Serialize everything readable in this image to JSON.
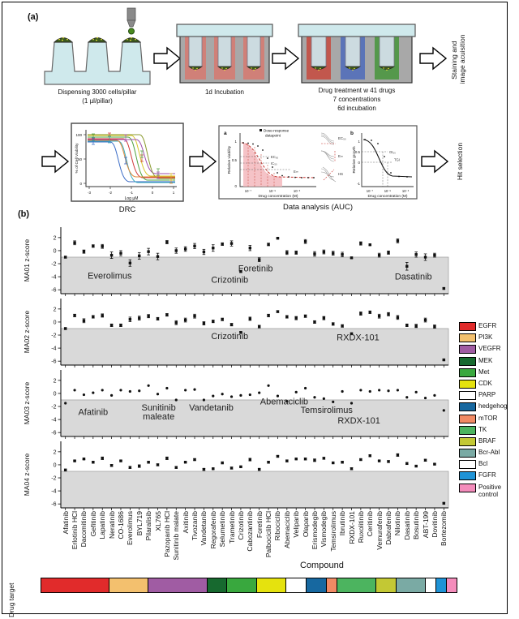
{
  "figure": {
    "panel_a_label": "(a)",
    "panel_b_label": "(b)"
  },
  "workflow": {
    "step1": {
      "caption_line1": "Dispensing 3000 cells/pillar",
      "caption_line2": "(1 µl/pillar)"
    },
    "step2": {
      "caption": "1d Incubation"
    },
    "step3": {
      "caption_line1": "Drug treatment w 41 drugs",
      "caption_line2": "7 concentrations",
      "caption_line3": "6d incubation"
    },
    "stage_label_top_line1": "Staining and",
    "stage_label_top_line2": "image acuisition",
    "stage_label_bottom": "Hit selection",
    "drc": {
      "caption": "DRC",
      "ylabel": "% of Cell Viability",
      "xlabel": "Log µM",
      "yticks": [
        "100",
        "50",
        "0"
      ],
      "xticks": [
        "-3",
        "-2",
        "-1",
        "0",
        "1"
      ]
    },
    "analysis": {
      "caption": "Data analysis (AUC)",
      "a_label": "a",
      "b_label": "b",
      "a_legend_line1": "Dose-response",
      "a_legend_line2": "datapoint",
      "a_ylabel": "Relative viability",
      "a_yticks": [
        "1",
        "0.5",
        "0"
      ],
      "a_guides": [
        "EC₅₀",
        "IC₅₀",
        "E∞"
      ],
      "mid_labels": [
        "EC₅₀",
        "E∞",
        "HS"
      ],
      "b_ylabel": "Relative growth",
      "b_yticks": [
        "1",
        "0.5",
        "0",
        "-1"
      ],
      "b_guides": [
        "GI₅₀",
        "TGI"
      ],
      "log_ticks": [
        "10⁻⁷",
        "10⁻⁵",
        "10⁻³"
      ],
      "conc_xlabel": "Drug concentration (M)"
    }
  },
  "chart_data": {
    "type": "scatter",
    "xlabel": "Compound",
    "ylim": [
      -6.6,
      3.6
    ],
    "yticks": [
      2,
      0,
      -2,
      -4,
      -6
    ],
    "hit_threshold_top": -1,
    "grid": false,
    "legend_position": "right",
    "categories": [
      "Afatinib",
      "Erlotinib HCl",
      "Dacomitinib",
      "Gefitinib",
      "Lapatinib",
      "Neratinib",
      "CO-1686",
      "Everolimus",
      "BYL719",
      "Pilaralisib",
      "XL765",
      "Pazopanib HCl",
      "Sunitinib malate",
      "Axitinib",
      "Tivozanib",
      "Vandetanib",
      "Regorafenib",
      "Selumetinib",
      "Trametinib",
      "Crizotinib",
      "Cabozantinib",
      "Foretinib",
      "Palbociclib HCl",
      "Ribociclib",
      "Abemaciclib",
      "Veliparib",
      "Olaparib",
      "Erismodegib",
      "Vismodegib",
      "Temsirolimus",
      "Ibrutinib",
      "RXDX-101",
      "Ruxolitinib",
      "Ceritinib",
      "Vemurafenib",
      "Dabrafenib",
      "Nilotinib",
      "Dasatinib",
      "Bosutinib",
      "ABT-199",
      "Dovitinib",
      "Bortezomib"
    ],
    "panels": [
      {
        "name": "MA01",
        "ylabel": "MA01 z-score",
        "marker": "square",
        "has_error_bars": true,
        "values": [
          -1.0,
          1.2,
          -0.15,
          0.7,
          0.65,
          -0.7,
          -0.4,
          -1.9,
          -0.8,
          -0.15,
          -0.9,
          1.3,
          0.0,
          0.25,
          0.7,
          -0.2,
          0.4,
          1.0,
          1.1,
          -3.2,
          0.4,
          -1.4,
          0.95,
          1.9,
          -0.3,
          -0.3,
          1.4,
          -0.5,
          -0.2,
          -0.4,
          -0.6,
          -1.1,
          1.1,
          0.9,
          -0.7,
          -0.3,
          1.5,
          -2.4,
          -0.6,
          -1.0,
          -0.7,
          -5.8
        ],
        "errors": [
          0.15,
          0.3,
          0.25,
          0.2,
          0.3,
          0.5,
          0.4,
          0.5,
          0.5,
          0.5,
          0.5,
          0.25,
          0.4,
          0.35,
          0.4,
          0.4,
          0.5,
          0.2,
          0.4,
          0.15,
          0.4,
          0.3,
          0.2,
          0.1,
          0.3,
          0.25,
          0.3,
          0.35,
          0.3,
          0.3,
          0.35,
          0.1,
          0.25,
          0.1,
          0.3,
          0.25,
          0.3,
          0.6,
          0.4,
          0.5,
          0.3,
          0.1
        ],
        "annotations": [
          {
            "label": "Everolimus",
            "ci": 4.8,
            "z": -4.3
          },
          {
            "label": "Crizotinib",
            "ci": 17.8,
            "z": -4.9
          },
          {
            "label": "Foretinib",
            "ci": 20.6,
            "z": -3.2
          },
          {
            "label": "Dasatinib",
            "ci": 37.7,
            "z": -4.4
          }
        ]
      },
      {
        "name": "MA02",
        "ylabel": "MA02 z-score",
        "marker": "square",
        "has_error_bars": true,
        "values": [
          -1.0,
          1.0,
          0.2,
          0.8,
          1.0,
          -0.5,
          -0.5,
          0.4,
          0.6,
          0.9,
          0.5,
          1.1,
          -0.1,
          0.3,
          0.9,
          -0.2,
          0.1,
          0.4,
          -0.4,
          -1.6,
          0.5,
          -0.7,
          1.0,
          1.6,
          0.8,
          0.6,
          0.9,
          0.0,
          0.6,
          -0.3,
          -0.6,
          -1.8,
          1.3,
          1.5,
          0.9,
          1.2,
          0.7,
          -0.5,
          -0.6,
          0.3,
          -0.7,
          -5.8
        ],
        "errors": [
          0.15,
          0.2,
          0.3,
          0.2,
          0.25,
          0.2,
          0.2,
          0.35,
          0.3,
          0.25,
          0.2,
          0.2,
          0.3,
          0.3,
          0.3,
          0.25,
          0.2,
          0.2,
          0.2,
          0.15,
          0.25,
          0.2,
          0.2,
          0.15,
          0.2,
          0.25,
          0.2,
          0.2,
          0.25,
          0.2,
          0.2,
          0.15,
          0.25,
          0.2,
          0.3,
          0.25,
          0.3,
          0.2,
          0.25,
          0.3,
          0.25,
          0.1
        ],
        "annotations": [
          {
            "label": "Crizotinib",
            "ci": 17.8,
            "z": -2.6
          },
          {
            "label": "RXDX-101",
            "ci": 31.7,
            "z": -2.8
          }
        ]
      },
      {
        "name": "MA03",
        "ylabel": "MA03 z-score",
        "marker": "dot",
        "has_error_bars": false,
        "values": [
          -1.5,
          0.5,
          -0.2,
          0.1,
          0.5,
          -0.3,
          0.5,
          0.3,
          0.4,
          1.2,
          -0.1,
          0.8,
          -1.0,
          0.5,
          0.6,
          -1.0,
          -0.4,
          -0.1,
          -0.5,
          -0.3,
          -0.2,
          0.1,
          1.2,
          -0.4,
          -1.2,
          0.2,
          0.8,
          -0.6,
          -0.8,
          -1.3,
          0.3,
          -1.5,
          0.5,
          0.3,
          0.5,
          0.4,
          0.5,
          -0.6,
          0.2,
          -0.7,
          -0.3,
          -2.6
        ],
        "annotations": [
          {
            "label": "Afatinib",
            "ci": 3.0,
            "z": -3.3
          },
          {
            "label": "Sunitinib\nmaleate",
            "ci": 10.1,
            "z": -2.6
          },
          {
            "label": "Vandetanib",
            "ci": 15.8,
            "z": -2.6
          },
          {
            "label": "Abemaciclib",
            "ci": 23.7,
            "z": -1.7
          },
          {
            "label": "Temsirolimus",
            "ci": 28.3,
            "z": -3.0
          },
          {
            "label": "RXDX-101",
            "ci": 31.8,
            "z": -4.6
          }
        ]
      },
      {
        "name": "MA04",
        "ylabel": "MA04 z-score",
        "marker": "square",
        "has_error_bars": true,
        "values": [
          -0.8,
          0.6,
          0.9,
          0.4,
          1.0,
          -0.1,
          0.6,
          -0.4,
          -0.2,
          0.4,
          0.0,
          1.0,
          -0.4,
          0.4,
          0.8,
          -0.7,
          -0.6,
          0.3,
          -0.5,
          -0.3,
          0.8,
          -0.7,
          0.4,
          1.3,
          0.6,
          0.9,
          0.9,
          0.7,
          1.0,
          0.3,
          0.4,
          -0.6,
          0.8,
          1.4,
          0.6,
          0.5,
          1.5,
          0.2,
          -0.2,
          0.7,
          0.1,
          -5.9
        ],
        "errors": [
          0.15,
          0.1,
          0.1,
          0.15,
          0.2,
          0.15,
          0.1,
          0.15,
          0.2,
          0.15,
          0.15,
          0.2,
          0.15,
          0.1,
          0.15,
          0.15,
          0.1,
          0.15,
          0.15,
          0.1,
          0.2,
          0.15,
          0.15,
          0.1,
          0.15,
          0.1,
          0.15,
          0.2,
          0.15,
          0.1,
          0.15,
          0.15,
          0.1,
          0.15,
          0.1,
          0.15,
          0.2,
          0.15,
          0.1,
          0.15,
          0.1,
          0.1
        ],
        "annotations": []
      }
    ],
    "legend": [
      {
        "label": "EGFR",
        "color": "#e12b2b"
      },
      {
        "label": "PI3K",
        "color": "#f3c06e"
      },
      {
        "label": "VEGFR",
        "color": "#a05ca3"
      },
      {
        "label": "MEK",
        "color": "#17692f"
      },
      {
        "label": "Met",
        "color": "#39a83e"
      },
      {
        "label": "CDK",
        "color": "#e5e20e"
      },
      {
        "label": "PARP",
        "color": "#ffffff"
      },
      {
        "label": "hedgehog",
        "color": "#1768a0"
      },
      {
        "label": "mTOR",
        "color": "#f18a64"
      },
      {
        "label": "TK",
        "color": "#4cb45f"
      },
      {
        "label": "BRAF",
        "color": "#c3c834"
      },
      {
        "label": "Bcr-Abl",
        "color": "#7aaaa4"
      },
      {
        "label": "Bcl",
        "color": "#ffffff"
      },
      {
        "label": "FGFR",
        "color": "#1f93d6"
      },
      {
        "label": "Positive control",
        "color": "#f48cbb"
      }
    ],
    "target_bar": {
      "label": "Drug target",
      "segments": [
        {
          "target": "EGFR",
          "color": "#e12b2b",
          "count": 7
        },
        {
          "target": "PI3K",
          "color": "#f3c06e",
          "count": 4
        },
        {
          "target": "VEGFR",
          "color": "#a05ca3",
          "count": 6
        },
        {
          "target": "MEK",
          "color": "#17692f",
          "count": 2
        },
        {
          "target": "Met",
          "color": "#39a83e",
          "count": 3
        },
        {
          "target": "CDK",
          "color": "#e5e20e",
          "count": 3
        },
        {
          "target": "PARP",
          "color": "#ffffff",
          "count": 2
        },
        {
          "target": "hedgehog",
          "color": "#1768a0",
          "count": 2
        },
        {
          "target": "mTOR",
          "color": "#f18a64",
          "count": 1
        },
        {
          "target": "TK",
          "color": "#4cb45f",
          "count": 4
        },
        {
          "target": "BRAF",
          "color": "#c3c834",
          "count": 2
        },
        {
          "target": "Bcr-Abl",
          "color": "#7aaaa4",
          "count": 3
        },
        {
          "target": "Bcl",
          "color": "#ffffff",
          "count": 1
        },
        {
          "target": "FGFR",
          "color": "#1f93d6",
          "count": 1
        },
        {
          "target": "Positive control",
          "color": "#f48cbb",
          "count": 1
        }
      ]
    }
  }
}
